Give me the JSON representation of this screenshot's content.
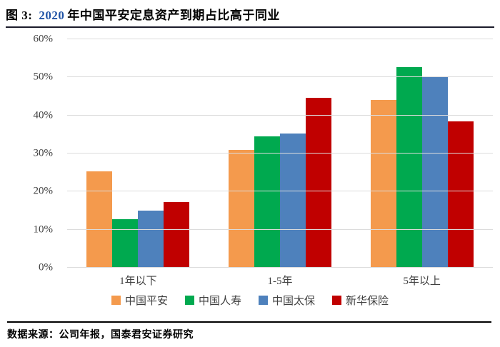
{
  "header": {
    "title_prefix": "图 3:",
    "title_year": "2020",
    "title_rest": "年中国平安定息资产到期占比高于同业"
  },
  "footer": {
    "source": "数据来源：公司年报，国泰君安证券研究"
  },
  "colors": {
    "title_year_blue": "#2053A6",
    "title_rule": "#1B1B2A",
    "gridline": "#DCDCDC",
    "axis_text": "#404040"
  },
  "chart_data": {
    "type": "bar",
    "title": "图 3: 2020 年中国平安定息资产到期占比高于同业",
    "categories": [
      "1年以下",
      "1-5年",
      "5年以上"
    ],
    "series": [
      {
        "name": "中国平安",
        "color": "#F49A4D",
        "values": [
          25.3,
          31.0,
          44.0
        ]
      },
      {
        "name": "中国人寿",
        "color": "#00A94F",
        "values": [
          12.8,
          34.5,
          52.7
        ]
      },
      {
        "name": "中国太保",
        "color": "#4E81BC",
        "values": [
          15.0,
          35.2,
          50.0
        ]
      },
      {
        "name": "新华保险",
        "color": "#C00000",
        "values": [
          17.2,
          44.6,
          38.5
        ]
      }
    ],
    "xlabel": "",
    "ylabel": "",
    "ylim": [
      0,
      60
    ],
    "ytick_labels": [
      "0%",
      "10%",
      "20%",
      "30%",
      "40%",
      "50%",
      "60%"
    ],
    "grid": true,
    "legend_position": "bottom"
  }
}
